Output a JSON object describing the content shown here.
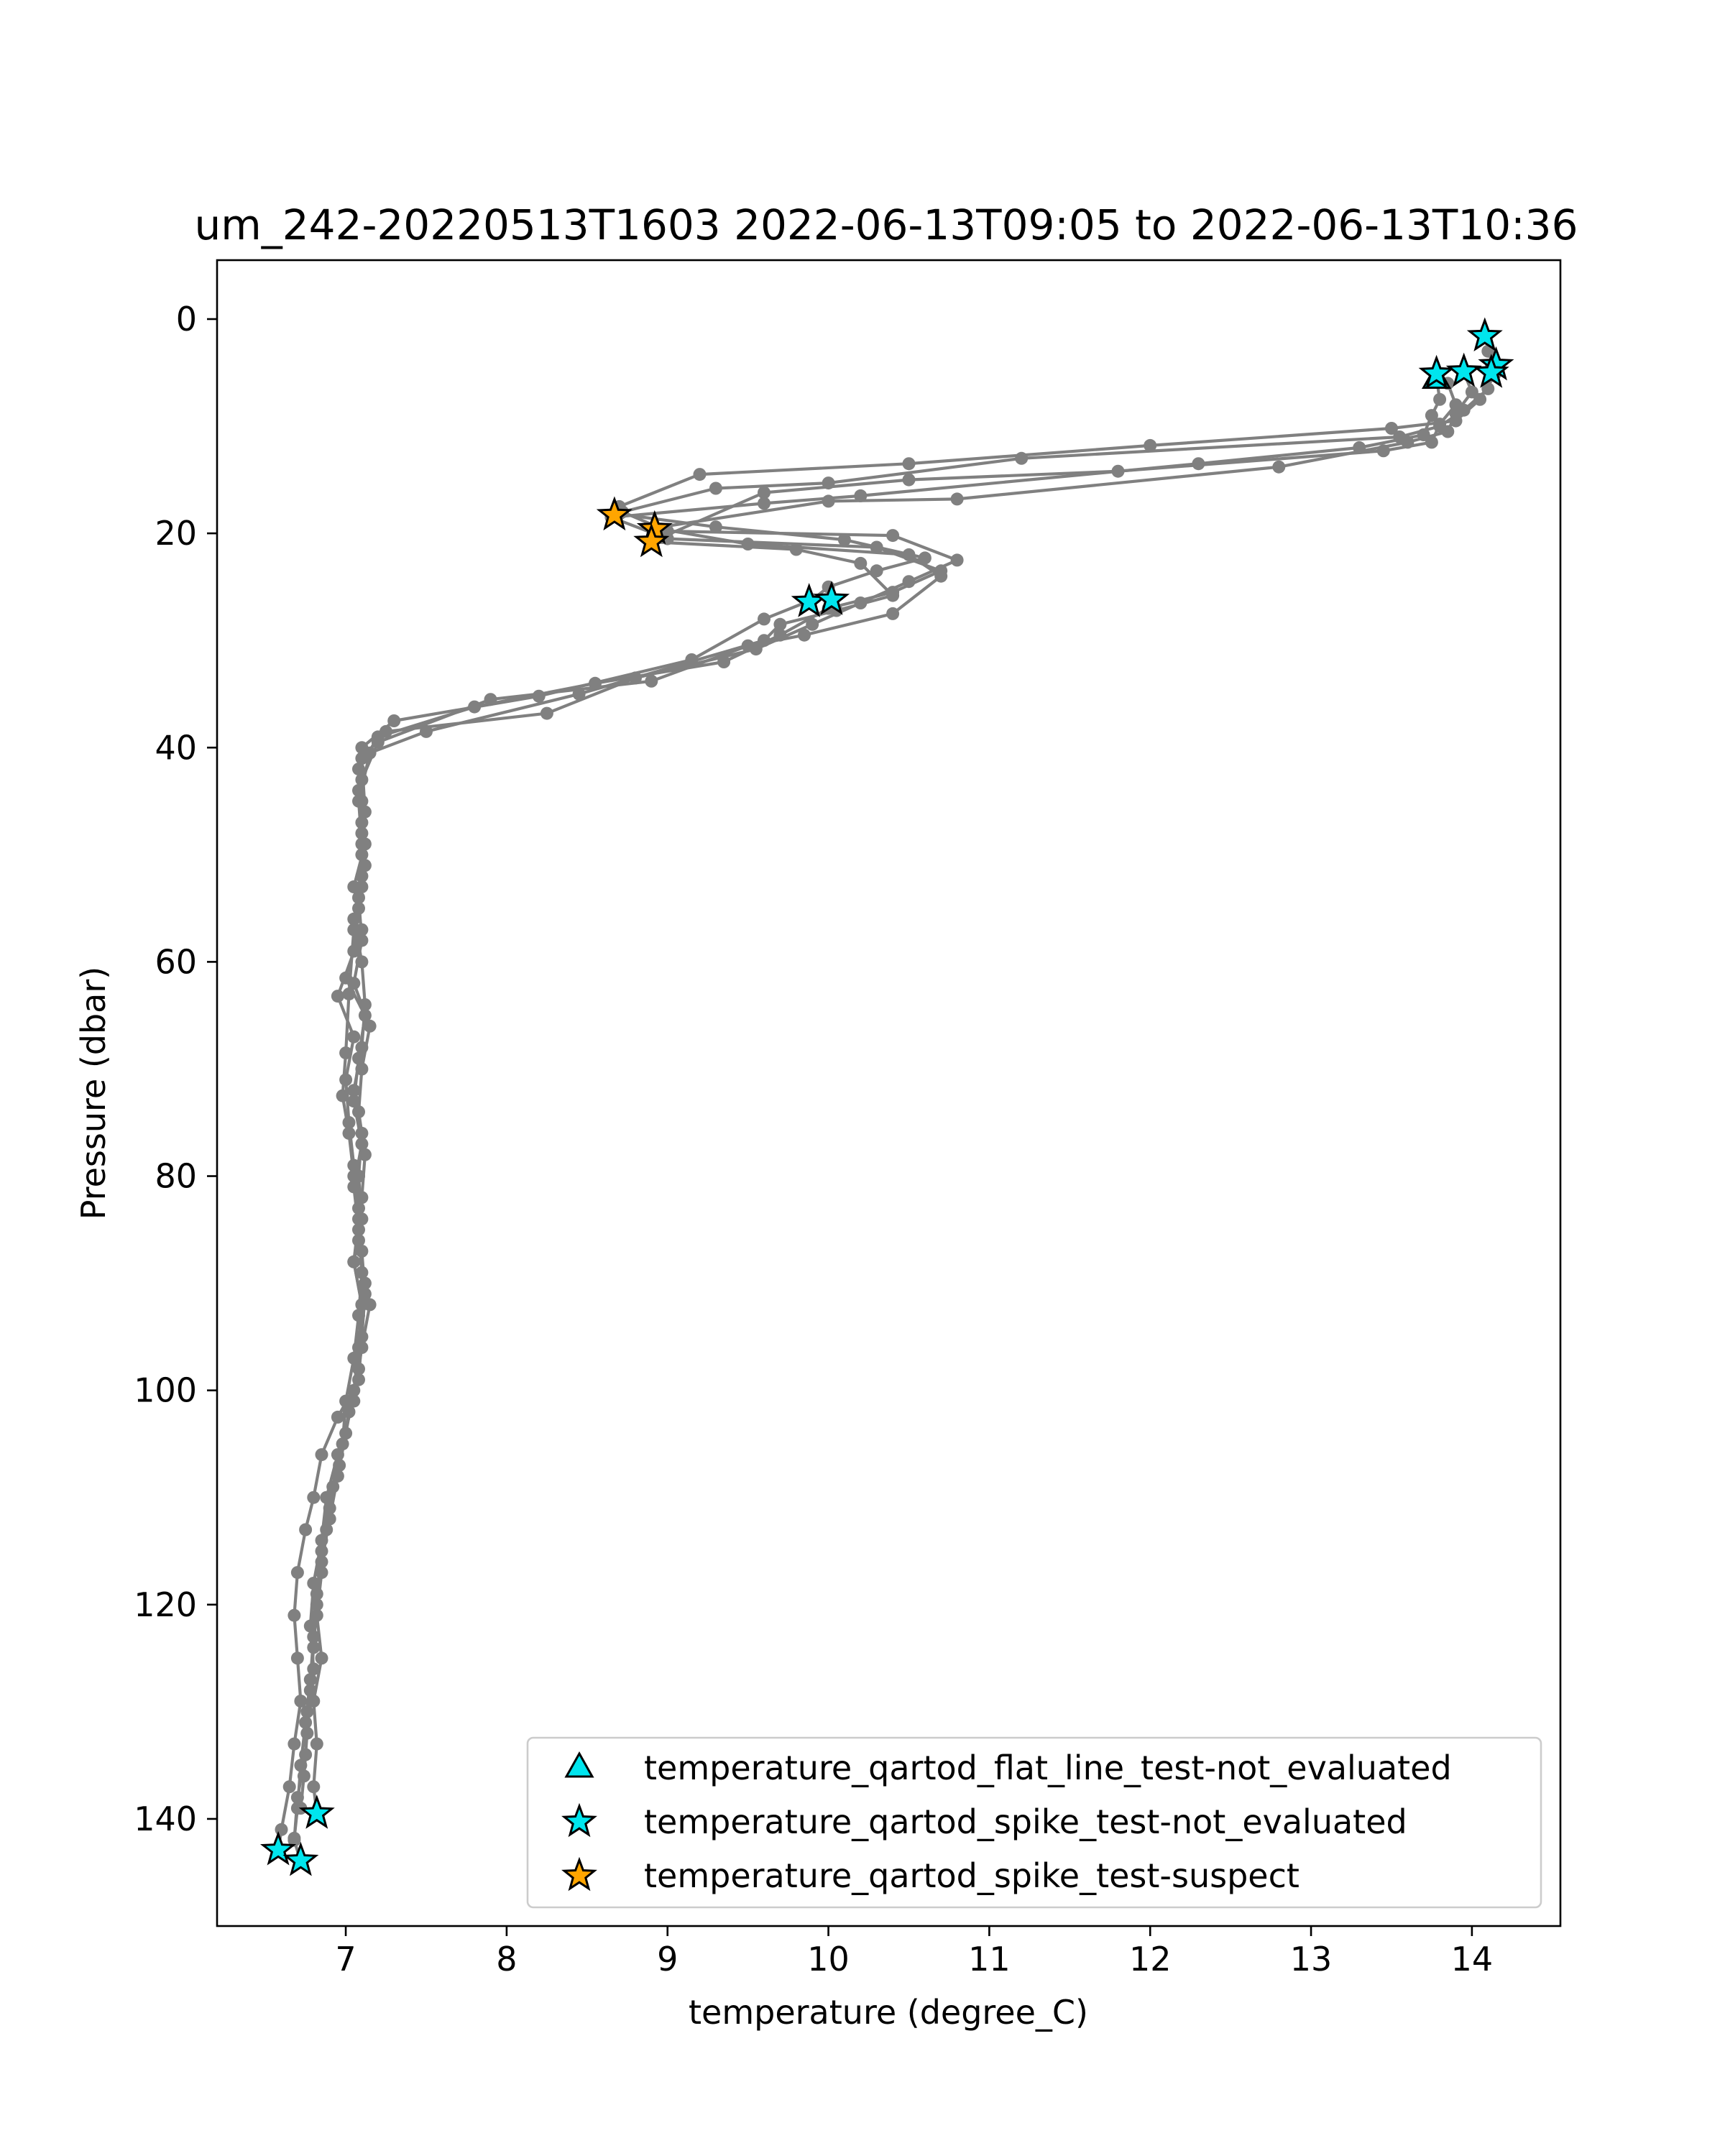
{
  "chart_data": {
    "type": "scatter",
    "title": "um_242-20220513T1603 2022-06-13T09:05 to 2022-06-13T10:36",
    "xlabel": "temperature (degree_C)",
    "ylabel": "Pressure (dbar)",
    "xlim": [
      6.2,
      14.55
    ],
    "ylim": [
      150,
      -5.5
    ],
    "y_inverted": true,
    "xticks": [
      "7",
      "8",
      "9",
      "10",
      "11",
      "12",
      "13",
      "14"
    ],
    "yticks": [
      "0",
      "20",
      "40",
      "60",
      "80",
      "100",
      "120",
      "140"
    ],
    "grid": false,
    "legend_position": "lower-right",
    "colors": {
      "profile_line": "#808080",
      "not_evaluated": "#00e5ee",
      "suspect": "#ffa500",
      "marker_edge": "#000000"
    },
    "profiles": [
      [
        [
          14.1,
          3.0
        ],
        [
          14.15,
          5.0
        ],
        [
          14.05,
          7.5
        ],
        [
          13.9,
          9.5
        ],
        [
          13.5,
          10.2
        ],
        [
          12.0,
          11.8
        ],
        [
          10.5,
          13.5
        ],
        [
          9.2,
          14.5
        ],
        [
          8.7,
          17.5
        ],
        [
          8.7,
          18.2
        ],
        [
          9.3,
          19.4
        ],
        [
          10.1,
          20.6
        ],
        [
          10.6,
          22.3
        ],
        [
          10.3,
          23.5
        ],
        [
          10.0,
          25.0
        ],
        [
          9.9,
          26.2
        ],
        [
          9.6,
          28.0
        ],
        [
          9.15,
          31.8
        ],
        [
          8.2,
          35.2
        ],
        [
          7.3,
          37.5
        ],
        [
          7.1,
          40.0
        ],
        [
          7.08,
          44.0
        ],
        [
          7.1,
          48.0
        ],
        [
          7.1,
          52.0
        ],
        [
          7.05,
          56.0
        ],
        [
          7.1,
          60.0
        ],
        [
          7.12,
          64.0
        ],
        [
          7.1,
          68.0
        ],
        [
          7.05,
          72.0
        ],
        [
          7.1,
          76.0
        ],
        [
          7.08,
          80.0
        ],
        [
          7.1,
          84.0
        ],
        [
          7.05,
          88.0
        ],
        [
          7.1,
          92.0
        ],
        [
          7.08,
          96.0
        ],
        [
          7.05,
          100.0
        ],
        [
          7.0,
          104.0
        ],
        [
          6.95,
          108.0
        ],
        [
          6.9,
          112.0
        ],
        [
          6.85,
          116.0
        ],
        [
          6.82,
          120.0
        ],
        [
          6.8,
          124.0
        ],
        [
          6.78,
          128.0
        ],
        [
          6.76,
          132.0
        ],
        [
          6.74,
          136.0
        ],
        [
          6.72,
          139.0
        ]
      ],
      [
        [
          14.12,
          4.5
        ],
        [
          14.1,
          6.5
        ],
        [
          13.95,
          8.5
        ],
        [
          13.8,
          10.0
        ],
        [
          13.55,
          11.0
        ],
        [
          11.2,
          13.0
        ],
        [
          10.0,
          15.3
        ],
        [
          9.3,
          15.8
        ],
        [
          8.72,
          18.0
        ],
        [
          9.0,
          19.8
        ],
        [
          10.4,
          20.2
        ],
        [
          10.8,
          22.5
        ],
        [
          10.5,
          24.5
        ],
        [
          10.2,
          26.5
        ],
        [
          9.9,
          28.5
        ],
        [
          9.55,
          30.8
        ],
        [
          8.8,
          33.5
        ],
        [
          8.25,
          36.8
        ],
        [
          7.25,
          38.5
        ],
        [
          7.1,
          41.0
        ],
        [
          7.12,
          46.0
        ],
        [
          7.1,
          50.0
        ],
        [
          7.08,
          54.0
        ],
        [
          7.1,
          58.0
        ],
        [
          7.05,
          62.0
        ],
        [
          7.15,
          66.0
        ],
        [
          7.1,
          70.0
        ],
        [
          7.08,
          74.0
        ],
        [
          7.12,
          78.0
        ],
        [
          7.1,
          82.0
        ],
        [
          7.08,
          86.0
        ],
        [
          7.12,
          90.0
        ],
        [
          7.15,
          92.0
        ],
        [
          7.1,
          96.0
        ],
        [
          7.05,
          101.0
        ],
        [
          6.95,
          106.0
        ],
        [
          6.88,
          110.0
        ],
        [
          6.85,
          114.0
        ],
        [
          6.8,
          118.0
        ],
        [
          6.78,
          122.0
        ],
        [
          6.8,
          126.0
        ],
        [
          6.76,
          130.0
        ],
        [
          6.75,
          134.0
        ],
        [
          6.7,
          138.0
        ],
        [
          6.68,
          142.0
        ],
        [
          6.72,
          144.0
        ]
      ],
      [
        [
          13.78,
          5.5
        ],
        [
          13.8,
          7.5
        ],
        [
          13.75,
          9.0
        ],
        [
          13.7,
          10.8
        ],
        [
          13.3,
          12.0
        ],
        [
          12.3,
          13.5
        ],
        [
          10.2,
          16.5
        ],
        [
          9.6,
          17.2
        ],
        [
          8.65,
          18.5
        ],
        [
          9.0,
          20.5
        ],
        [
          10.3,
          21.3
        ],
        [
          10.7,
          23.5
        ],
        [
          10.4,
          25.5
        ],
        [
          10.0,
          27.0
        ],
        [
          9.7,
          29.5
        ],
        [
          9.35,
          32.0
        ],
        [
          8.55,
          34.0
        ],
        [
          7.8,
          36.2
        ],
        [
          7.2,
          39.0
        ],
        [
          7.08,
          42.0
        ],
        [
          7.1,
          45.0
        ],
        [
          7.12,
          49.0
        ],
        [
          7.05,
          53.0
        ],
        [
          7.1,
          57.0
        ],
        [
          6.95,
          63.2
        ],
        [
          7.05,
          67.0
        ],
        [
          7.0,
          71.0
        ],
        [
          7.02,
          75.0
        ],
        [
          7.05,
          79.0
        ],
        [
          7.08,
          83.0
        ],
        [
          7.1,
          87.0
        ],
        [
          7.12,
          91.0
        ],
        [
          7.1,
          95.0
        ],
        [
          7.08,
          99.0
        ],
        [
          6.95,
          102.5
        ],
        [
          6.85,
          106.0
        ],
        [
          6.8,
          110.0
        ],
        [
          6.75,
          113.0
        ],
        [
          6.7,
          117.0
        ],
        [
          6.68,
          121.0
        ],
        [
          6.7,
          125.0
        ],
        [
          6.72,
          129.0
        ],
        [
          6.68,
          133.0
        ],
        [
          6.65,
          137.0
        ],
        [
          6.6,
          141.0
        ],
        [
          6.58,
          143.0
        ]
      ],
      [
        [
          13.95,
          5.0
        ],
        [
          14.0,
          6.8
        ],
        [
          13.9,
          8.8
        ],
        [
          13.85,
          10.5
        ],
        [
          13.6,
          11.5
        ],
        [
          12.8,
          13.8
        ],
        [
          10.8,
          16.8
        ],
        [
          10.0,
          17.0
        ],
        [
          8.92,
          19.5
        ],
        [
          9.5,
          21.0
        ],
        [
          10.5,
          22.0
        ],
        [
          10.7,
          24.0
        ],
        [
          10.4,
          27.5
        ],
        [
          9.85,
          29.5
        ],
        [
          9.5,
          30.5
        ],
        [
          8.9,
          33.8
        ],
        [
          7.9,
          35.5
        ],
        [
          7.2,
          39.5
        ],
        [
          7.1,
          43.0
        ],
        [
          7.1,
          47.0
        ],
        [
          7.12,
          51.0
        ],
        [
          7.08,
          55.0
        ],
        [
          7.05,
          59.0
        ],
        [
          7.0,
          61.5
        ],
        [
          7.12,
          65.0
        ],
        [
          7.08,
          69.0
        ],
        [
          7.05,
          73.0
        ],
        [
          7.1,
          77.0
        ],
        [
          7.05,
          81.0
        ],
        [
          7.08,
          85.0
        ],
        [
          7.1,
          89.0
        ],
        [
          7.08,
          93.0
        ],
        [
          7.05,
          97.0
        ],
        [
          7.0,
          101.0
        ],
        [
          6.98,
          105.0
        ],
        [
          6.92,
          109.0
        ],
        [
          6.88,
          113.0
        ],
        [
          6.85,
          117.0
        ],
        [
          6.82,
          121.0
        ],
        [
          6.85,
          125.0
        ],
        [
          6.8,
          129.0
        ],
        [
          6.82,
          133.0
        ],
        [
          6.8,
          137.0
        ],
        [
          6.82,
          139.5
        ]
      ],
      [
        [
          13.85,
          6.0
        ],
        [
          13.9,
          8.0
        ],
        [
          13.8,
          9.8
        ],
        [
          13.75,
          11.5
        ],
        [
          13.45,
          12.3
        ],
        [
          11.8,
          14.2
        ],
        [
          10.5,
          15.0
        ],
        [
          9.6,
          16.2
        ],
        [
          8.9,
          20.8
        ],
        [
          9.8,
          21.5
        ],
        [
          10.2,
          22.8
        ],
        [
          10.4,
          25.8
        ],
        [
          10.05,
          27.2
        ],
        [
          9.7,
          28.5
        ],
        [
          9.6,
          30.0
        ],
        [
          8.45,
          35.0
        ],
        [
          7.5,
          38.5
        ],
        [
          7.15,
          40.5
        ],
        [
          7.08,
          45.0
        ],
        [
          7.1,
          49.0
        ],
        [
          7.1,
          53.0
        ],
        [
          7.05,
          57.0
        ],
        [
          7.02,
          63.0
        ],
        [
          7.0,
          68.5
        ],
        [
          6.98,
          72.5
        ],
        [
          7.02,
          76.0
        ],
        [
          7.05,
          80.0
        ],
        [
          7.08,
          84.0
        ],
        [
          7.05,
          88.0
        ],
        [
          7.1,
          92.0
        ],
        [
          7.08,
          98.0
        ],
        [
          7.02,
          102.0
        ],
        [
          6.96,
          107.0
        ],
        [
          6.9,
          111.0
        ],
        [
          6.85,
          115.0
        ],
        [
          6.82,
          119.0
        ],
        [
          6.8,
          123.0
        ],
        [
          6.78,
          127.0
        ],
        [
          6.75,
          131.0
        ],
        [
          6.72,
          135.0
        ],
        [
          6.7,
          139.0
        ],
        [
          6.68,
          141.8
        ]
      ]
    ],
    "flags": {
      "flat_line_not_evaluated": [
        [
          13.78,
          5.6
        ]
      ],
      "spike_not_evaluated": [
        [
          14.08,
          1.6
        ],
        [
          13.78,
          5.1
        ],
        [
          13.95,
          4.9
        ],
        [
          14.15,
          4.3
        ],
        [
          14.12,
          5.0
        ],
        [
          9.88,
          26.4
        ],
        [
          10.02,
          26.2
        ],
        [
          6.82,
          139.5
        ],
        [
          6.58,
          142.9
        ],
        [
          6.72,
          143.9
        ]
      ],
      "spike_suspect": [
        [
          8.67,
          18.3
        ],
        [
          8.92,
          19.6
        ],
        [
          8.9,
          20.8
        ]
      ]
    },
    "legend": [
      {
        "label": "temperature_qartod_flat_line_test-not_evaluated",
        "marker": "triangle",
        "color": "#00e5ee"
      },
      {
        "label": "temperature_qartod_spike_test-not_evaluated",
        "marker": "star",
        "color": "#00e5ee"
      },
      {
        "label": "temperature_qartod_spike_test-suspect",
        "marker": "star",
        "color": "#ffa500"
      }
    ]
  }
}
